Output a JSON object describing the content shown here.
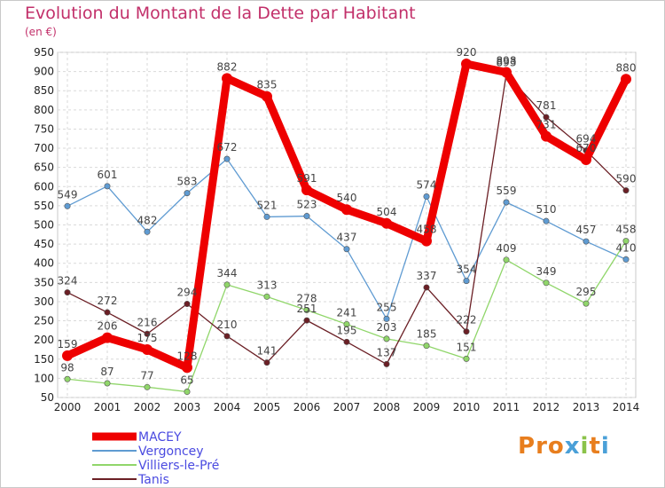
{
  "header": {
    "title": "Evolution du Montant de la Dette par Habitant",
    "unit": "(en €)"
  },
  "logo": {
    "text": "Proxiti"
  },
  "chart_data": {
    "type": "line",
    "title": "Evolution du Montant de la Dette par Habitant",
    "ylabel": "(en €)",
    "xlabel": "",
    "x": [
      "2000",
      "2001",
      "2002",
      "2003",
      "2004",
      "2005",
      "2006",
      "2007",
      "2008",
      "2009",
      "2010",
      "2011",
      "2012",
      "2013",
      "2014"
    ],
    "ylim": [
      50,
      950
    ],
    "yticks": [
      50,
      100,
      150,
      200,
      250,
      300,
      350,
      400,
      450,
      500,
      550,
      600,
      650,
      700,
      750,
      800,
      850,
      900,
      950
    ],
    "grid": true,
    "legend_position": "bottom-left",
    "series": [
      {
        "name": "MACEY",
        "color": "#ee0000",
        "values": [
          159,
          206,
          175,
          128,
          882,
          835,
          591,
          540,
          504,
          458,
          920,
          898,
          731,
          670,
          880
        ],
        "labels": [
          "159",
          "206",
          "175",
          "128",
          "882",
          "835",
          "591",
          "540",
          "504",
          "458",
          "920",
          "898",
          "731",
          "670",
          "880"
        ]
      },
      {
        "name": "Vergoncey",
        "color": "#5f9bd2",
        "values": [
          549,
          601,
          482,
          583,
          672,
          521,
          523,
          437,
          255,
          574,
          354,
          559,
          510,
          457,
          410
        ],
        "labels": [
          "549",
          "601",
          "482",
          "583",
          "672",
          "521",
          "523",
          "437",
          "255",
          "574",
          "354",
          "559",
          "510",
          "457",
          "410"
        ]
      },
      {
        "name": "Villiers-le-Pré",
        "color": "#90d66a",
        "values": [
          98,
          87,
          77,
          65,
          344,
          313,
          278,
          241,
          203,
          185,
          151,
          409,
          349,
          295,
          458
        ],
        "labels": [
          "98",
          "87",
          "77",
          "65",
          "344",
          "313",
          "278",
          "241",
          "203",
          "185",
          "151",
          "409",
          "349",
          "295",
          "458"
        ]
      },
      {
        "name": "Tanis",
        "color": "#6b1f25",
        "values": [
          324,
          272,
          216,
          294,
          210,
          141,
          251,
          195,
          137,
          337,
          222,
          893,
          781,
          694,
          590
        ],
        "labels": [
          "324",
          "272",
          "216",
          "294",
          "210",
          "141",
          "251",
          "195",
          "137",
          "337",
          "222",
          "893",
          "781",
          "694",
          "590"
        ]
      }
    ]
  }
}
